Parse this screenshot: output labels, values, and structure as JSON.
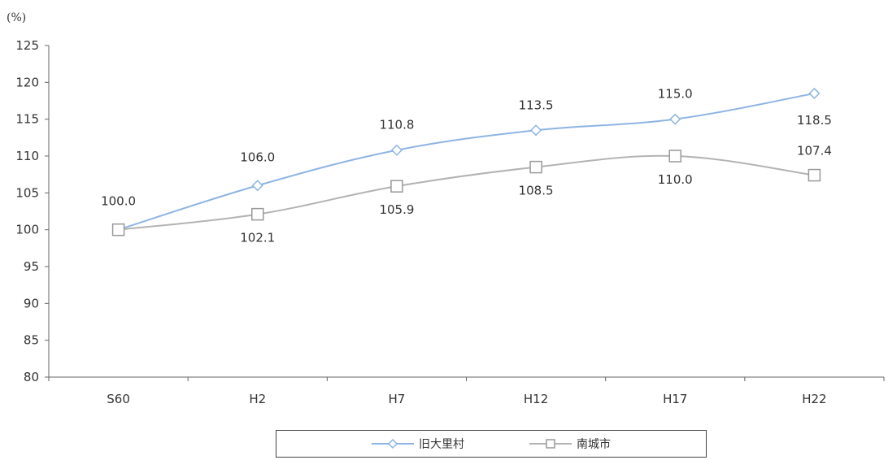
{
  "chart_data": {
    "type": "line",
    "unit_label": "(%)",
    "categories": [
      "S60",
      "H2",
      "H7",
      "H12",
      "H17",
      "H22"
    ],
    "ylim": [
      80,
      125
    ],
    "yticks": [
      80,
      85,
      90,
      95,
      100,
      105,
      110,
      115,
      120,
      125
    ],
    "series": [
      {
        "name": "旧大里村",
        "color": "#8eb4e3",
        "marker": "diamond",
        "values": [
          100.0,
          106.0,
          110.8,
          113.5,
          115.0,
          118.5
        ],
        "labels": [
          "100.0",
          "106.0",
          "110.8",
          "113.5",
          "115.0",
          "118.5"
        ]
      },
      {
        "name": "南城市",
        "color": "#b3b3b3",
        "marker": "square",
        "values": [
          100.0,
          102.1,
          105.9,
          108.5,
          110.0,
          107.4
        ],
        "labels": [
          "",
          "102.1",
          "105.9",
          "108.5",
          "110.0",
          "107.4"
        ]
      }
    ],
    "grid": false,
    "legend_position": "bottom"
  }
}
